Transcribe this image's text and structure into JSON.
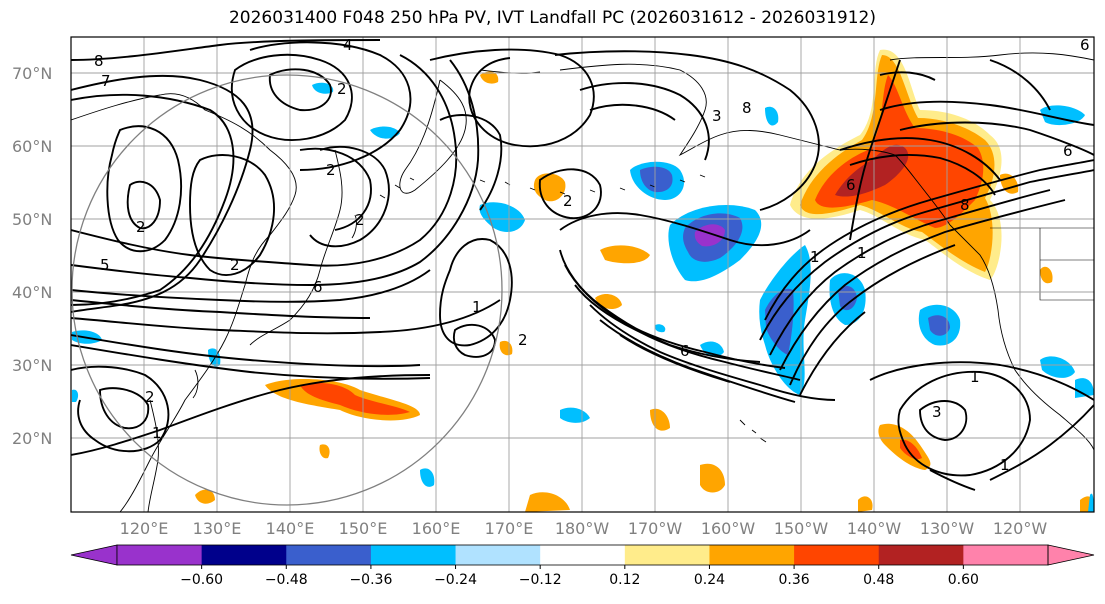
{
  "title": "2026031400 F048 250 hPa PV, IVT Landfall PC (2026031612 - 2026031912)",
  "lat_labels": [
    "70°N",
    "60°N",
    "50°N",
    "40°N",
    "30°N",
    "20°N"
  ],
  "lon_labels": [
    "120°E",
    "130°E",
    "140°E",
    "150°E",
    "160°E",
    "170°E",
    "180°W",
    "170°W",
    "160°W",
    "150°W",
    "140°W",
    "130°W",
    "120°W"
  ],
  "colorbar": {
    "colors": [
      "#9932cc",
      "#00008b",
      "#3a5fcd",
      "#00bfff",
      "#b0e2ff",
      "#ffffff",
      "#ffec8b",
      "#ffa500",
      "#ff4500",
      "#b22222",
      "#ff82ab"
    ],
    "extend_low_color": "#9932cc",
    "extend_high_color": "#ff82ab",
    "tick_labels": [
      "−0.60",
      "−0.48",
      "−0.36",
      "−0.24",
      "−0.12",
      "0.12",
      "0.24",
      "0.36",
      "0.48",
      "0.60"
    ]
  },
  "contour_labels": [
    "8",
    "7",
    "4",
    "2",
    "2",
    "2",
    "2",
    "5",
    "6",
    "1",
    "2",
    "6",
    "1",
    "3",
    "1",
    "2",
    "1",
    "1",
    "6",
    "1",
    "2",
    "8",
    "3",
    "6",
    "8",
    "2",
    "6"
  ],
  "map_region": {
    "lon_min": 110,
    "lon_max": 250,
    "lat_min": 10,
    "lat_max": 75
  }
}
